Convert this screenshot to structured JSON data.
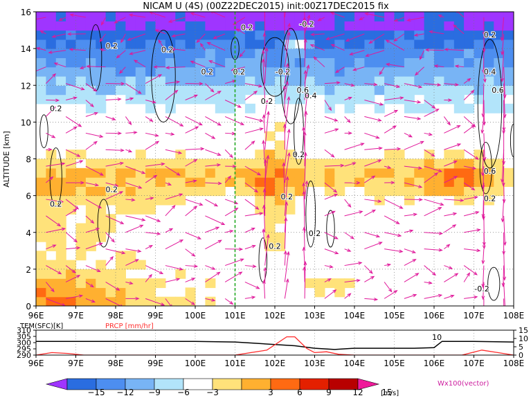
{
  "chart_data": [
    {
      "type": "heatmap",
      "title": "NICAM U (4S) (00Z22DEC2015) init:00Z17DEC2015 fix",
      "ylabel": "ALTITUDE [km]",
      "x_ticks": [
        "96E",
        "97E",
        "98E",
        "99E",
        "100E",
        "101E",
        "102E",
        "103E",
        "104E",
        "105E",
        "106E",
        "107E",
        "108E"
      ],
      "y_ticks": [
        "0",
        "2",
        "4",
        "6",
        "8",
        "10",
        "12",
        "14",
        "16"
      ],
      "xlim": [
        96,
        108
      ],
      "ylim": [
        0,
        16
      ],
      "grid": true,
      "shaded_variable": "zonal wind U [m/s]",
      "contour_labels": [
        {
          "text": "0.2",
          "x": 97.9,
          "y": 14.0
        },
        {
          "text": "0.2",
          "x": 99.3,
          "y": 13.8
        },
        {
          "text": "0.2",
          "x": 96.5,
          "y": 10.6
        },
        {
          "text": "0.2",
          "x": 101.3,
          "y": 15.0
        },
        {
          "text": "-0.2",
          "x": 102.8,
          "y": 15.2
        },
        {
          "text": "0.2",
          "x": 100.3,
          "y": 12.6
        },
        {
          "text": "0.2",
          "x": 101.1,
          "y": 12.6
        },
        {
          "text": "-0.2",
          "x": 102.2,
          "y": 12.6
        },
        {
          "text": "0.6",
          "x": 102.7,
          "y": 11.6
        },
        {
          "text": "0.2",
          "x": 101.8,
          "y": 11.0
        },
        {
          "text": "0.4",
          "x": 102.9,
          "y": 11.3
        },
        {
          "text": "0.2",
          "x": 102.6,
          "y": 8.1
        },
        {
          "text": "0.2",
          "x": 97.9,
          "y": 6.2
        },
        {
          "text": "0.2",
          "x": 96.5,
          "y": 5.4
        },
        {
          "text": "0.2",
          "x": 102.3,
          "y": 5.8
        },
        {
          "text": "0.2",
          "x": 102.0,
          "y": 3.1
        },
        {
          "text": "0.2",
          "x": 103.0,
          "y": 3.8
        },
        {
          "text": "0.4",
          "x": 107.4,
          "y": 12.6
        },
        {
          "text": "0.6",
          "x": 107.6,
          "y": 11.6
        },
        {
          "text": "0.2",
          "x": 107.4,
          "y": 14.6
        },
        {
          "text": "0.6",
          "x": 107.4,
          "y": 7.2
        },
        {
          "text": "0.2",
          "x": 107.4,
          "y": 5.7
        },
        {
          "text": "-0.2",
          "x": 107.2,
          "y": 0.8
        }
      ],
      "marker_lon": 101
    },
    {
      "type": "line",
      "x_ticks": [
        "96E",
        "97E",
        "98E",
        "99E",
        "100E",
        "101E",
        "102E",
        "103E",
        "104E",
        "105E",
        "106E",
        "107E",
        "108E"
      ],
      "left_axis": {
        "label": "TEM(SFC)[K]",
        "ticks": [
          "290",
          "295",
          "300",
          "305",
          "310"
        ],
        "range": [
          290,
          310
        ]
      },
      "right_axis": {
        "label": "PRCP [mm/hr]",
        "ticks": [
          "0",
          "5",
          "10",
          "15"
        ],
        "range": [
          0,
          15
        ]
      },
      "series": [
        {
          "name": "TEM(SFC)[K]",
          "color": "#000000",
          "x": [
            96,
            97,
            98,
            99,
            100,
            101,
            101.5,
            102,
            102.5,
            103,
            103.5,
            104,
            104.5,
            105,
            105.5,
            106,
            106.2,
            107,
            108
          ],
          "y": [
            301,
            301,
            301,
            301,
            301,
            300.5,
            299.5,
            298.5,
            297.5,
            295.5,
            294.5,
            295.5,
            295.5,
            295.5,
            295.5,
            296,
            301,
            301,
            300.5
          ]
        },
        {
          "name": "PRCP [mm/hr]",
          "color": "#ff2a2a",
          "x": [
            96,
            96.4,
            96.8,
            97.2,
            98,
            99,
            100,
            101,
            101.8,
            102.3,
            102.5,
            102.8,
            103.0,
            103.3,
            103.6,
            104,
            105,
            106,
            106.7,
            107.2,
            107.6,
            108
          ],
          "y": [
            0,
            1.5,
            1.0,
            0,
            0,
            0,
            0,
            0,
            3,
            11,
            11,
            4,
            1.5,
            2,
            0.5,
            0,
            0,
            0,
            0,
            3,
            1.5,
            0
          ]
        }
      ],
      "annotation": "10"
    }
  ],
  "colorbar": {
    "ticks": [
      "−15",
      "−12",
      "−9",
      "−6",
      "−3",
      "3",
      "6",
      "9",
      "12",
      "15"
    ],
    "unit": "[m/s]",
    "colors": [
      "#9f35ff",
      "#2a6de0",
      "#4d8ef0",
      "#78b4f5",
      "#b2e4fa",
      "#ffffff",
      "#ffe27a",
      "#ffb030",
      "#ff6a12",
      "#e42000",
      "#b80000",
      "#f01a9a"
    ]
  },
  "vector_label": "Wx100(vector)"
}
